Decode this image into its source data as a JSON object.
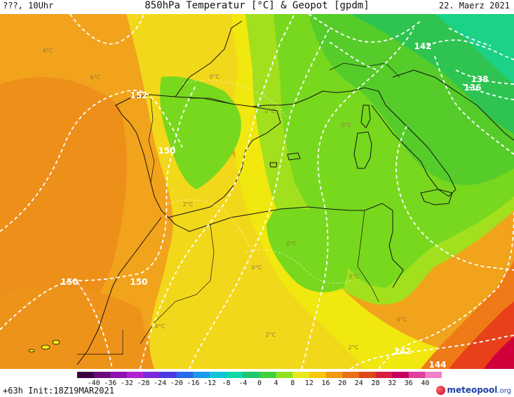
{
  "header": {
    "left": "???, 10Uhr",
    "title": "850hPa Temperatur [°C] & Geopot [gpdm]",
    "date": "22. Maerz 2021"
  },
  "footer": {
    "run": "+63h Init:18Z19MAR2021",
    "logo_text": "meteopool",
    "logo_suffix": ".org"
  },
  "colorbar": {
    "labels": [
      "-40",
      "-36",
      "-32",
      "-28",
      "-24",
      "-20",
      "-16",
      "-12",
      "-8",
      "-4",
      "0",
      "4",
      "8",
      "12",
      "16",
      "20",
      "24",
      "28",
      "32",
      "36",
      "40"
    ],
    "colors": [
      "#3a0040",
      "#6a0a7a",
      "#9010b0",
      "#b020d0",
      "#7a2ad8",
      "#4a3ae0",
      "#2a6ae8",
      "#1a9ae8",
      "#14c4d8",
      "#10d8a8",
      "#1cc870",
      "#40d040",
      "#90e020",
      "#e8e820",
      "#f8c810",
      "#f09a10",
      "#e87018",
      "#e04818",
      "#d82040",
      "#c80060",
      "#e040a0",
      "#f080c8"
    ]
  },
  "map": {
    "isohypse_labels": [
      "152",
      "150",
      "150",
      "150",
      "142",
      "142",
      "144",
      "138",
      "136"
    ],
    "temperature_labels": [
      "4°C",
      "6°C",
      "0°C",
      "0°C",
      "0°C",
      "2°C",
      "0°C",
      "0°C",
      "0°C",
      "4°C",
      "2°C",
      "2°C",
      "0°C"
    ],
    "colors": {
      "ocean_warm": "#f2a31c",
      "ocean_deep": "#ee8f1a",
      "land_yellow": "#f2d81a",
      "bright_yellow": "#f0e80e",
      "light_green": "#a2e01e",
      "green": "#78d81e",
      "mid_green": "#55cc2a",
      "deep_green": "#2fc451",
      "teal_green": "#1bd287",
      "hot_red": "#e8401a",
      "crimson": "#d0003a"
    }
  }
}
